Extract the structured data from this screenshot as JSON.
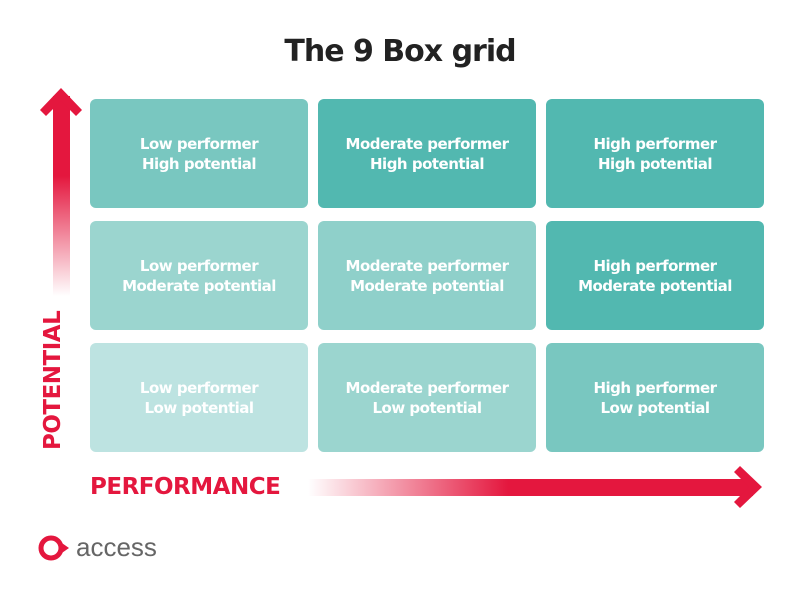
{
  "title": "The 9 Box grid",
  "axes": {
    "y_label": "POTENTIAL",
    "x_label": "PERFORMANCE",
    "accent": "#e4173e"
  },
  "cells": [
    {
      "line1": "Low performer",
      "line2": "High potential",
      "color": "#79c7c0"
    },
    {
      "line1": "Moderate performer",
      "line2": "High potential",
      "color": "#52b8b0"
    },
    {
      "line1": "High performer",
      "line2": "High potential",
      "color": "#52b8b0"
    },
    {
      "line1": "Low performer",
      "line2": "Moderate potential",
      "color": "#9bd5cf"
    },
    {
      "line1": "Moderate performer",
      "line2": "Moderate potential",
      "color": "#8fd0ca"
    },
    {
      "line1": "High performer",
      "line2": "Moderate potential",
      "color": "#52b8b0"
    },
    {
      "line1": "Low performer",
      "line2": "Low potential",
      "color": "#bde3e1"
    },
    {
      "line1": "Moderate performer",
      "line2": "Low potential",
      "color": "#9bd5cf"
    },
    {
      "line1": "High performer",
      "line2": "Low potential",
      "color": "#79c7c0"
    }
  ],
  "logo": {
    "text": "access"
  }
}
